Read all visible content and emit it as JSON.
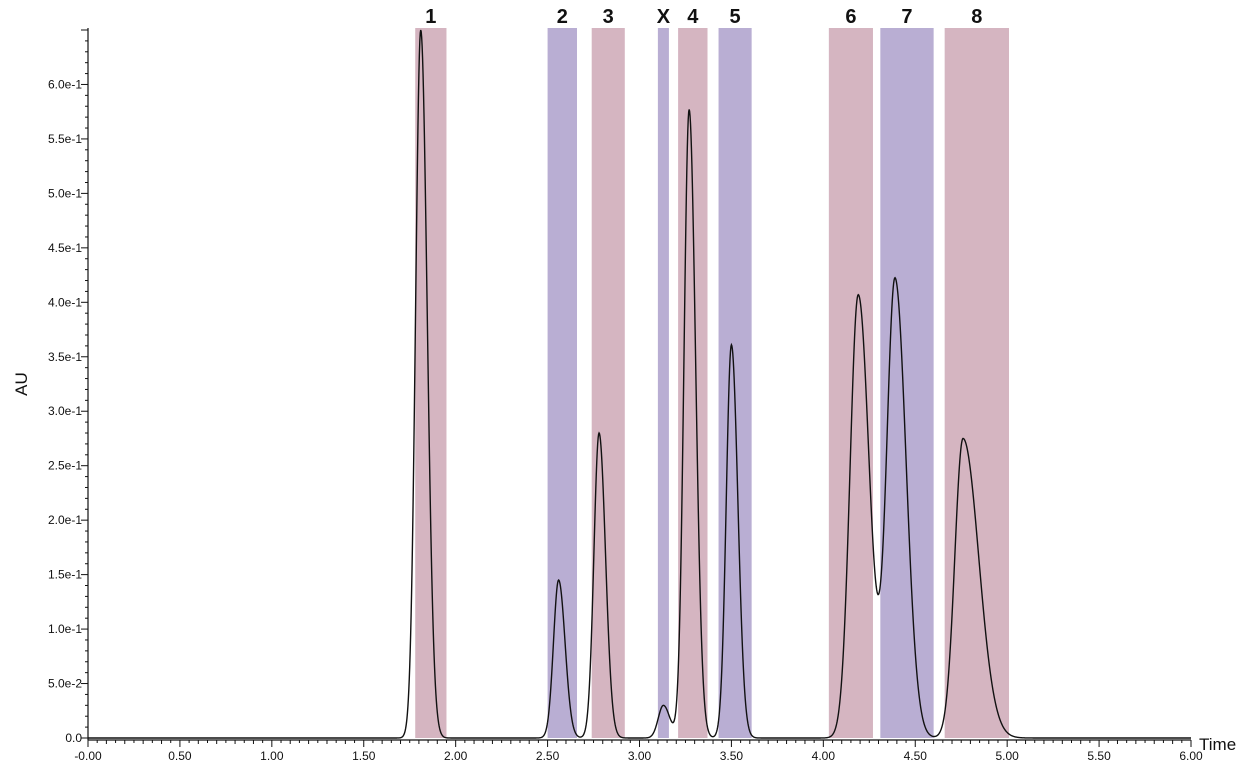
{
  "chart_data": {
    "type": "line",
    "title": "",
    "xlabel": "Time",
    "ylabel": "AU",
    "xlim": [
      0.0,
      6.0
    ],
    "ylim": [
      0.0,
      0.65
    ],
    "grid": false,
    "x_ticks": [
      0.0,
      0.5,
      1.0,
      1.5,
      2.0,
      2.5,
      3.0,
      3.5,
      4.0,
      4.5,
      5.0,
      5.5,
      6.0
    ],
    "x_tick_labels": [
      "-0.00",
      "0.50",
      "1.00",
      "1.50",
      "2.00",
      "2.50",
      "3.00",
      "3.50",
      "4.00",
      "4.50",
      "5.00",
      "5.50",
      "6.00"
    ],
    "y_ticks": [
      0.0,
      0.05,
      0.1,
      0.15,
      0.2,
      0.25,
      0.3,
      0.35,
      0.4,
      0.45,
      0.5,
      0.55,
      0.6
    ],
    "y_tick_labels": [
      "0.0",
      "5.0e-2",
      "1.0e-1",
      "1.5e-1",
      "2.0e-1",
      "2.5e-1",
      "3.0e-1",
      "3.5e-1",
      "4.0e-1",
      "4.5e-1",
      "5.0e-1",
      "5.5e-1",
      "6.0e-1"
    ],
    "peaks": [
      {
        "label": "1",
        "time": 1.81,
        "height": 0.65,
        "band": [
          1.78,
          1.95
        ],
        "band_color": "#d5b5c1"
      },
      {
        "label": "2",
        "time": 2.56,
        "height": 0.145,
        "band": [
          2.5,
          2.66
        ],
        "band_color": "#b9aed3"
      },
      {
        "label": "3",
        "time": 2.78,
        "height": 0.28,
        "band": [
          2.74,
          2.92
        ],
        "band_color": "#d5b5c1"
      },
      {
        "label": "X",
        "time": 3.13,
        "height": 0.03,
        "band": [
          3.1,
          3.16
        ],
        "band_color": "#b9aed3"
      },
      {
        "label": "4",
        "time": 3.27,
        "height": 0.577,
        "band": [
          3.21,
          3.37
        ],
        "band_color": "#d5b5c1"
      },
      {
        "label": "5",
        "time": 3.5,
        "height": 0.361,
        "band": [
          3.43,
          3.61
        ],
        "band_color": "#b9aed3"
      },
      {
        "label": "6",
        "time": 4.19,
        "height": 0.407,
        "band": [
          4.03,
          4.27
        ],
        "band_color": "#d5b5c1"
      },
      {
        "label": "7",
        "time": 4.39,
        "height": 0.421,
        "band": [
          4.31,
          4.6
        ],
        "band_color": "#b9aed3"
      },
      {
        "label": "8",
        "time": 4.76,
        "height": 0.275,
        "band": [
          4.66,
          5.01
        ],
        "band_color": "#d5b5c1"
      }
    ],
    "line_color": "#111111"
  }
}
